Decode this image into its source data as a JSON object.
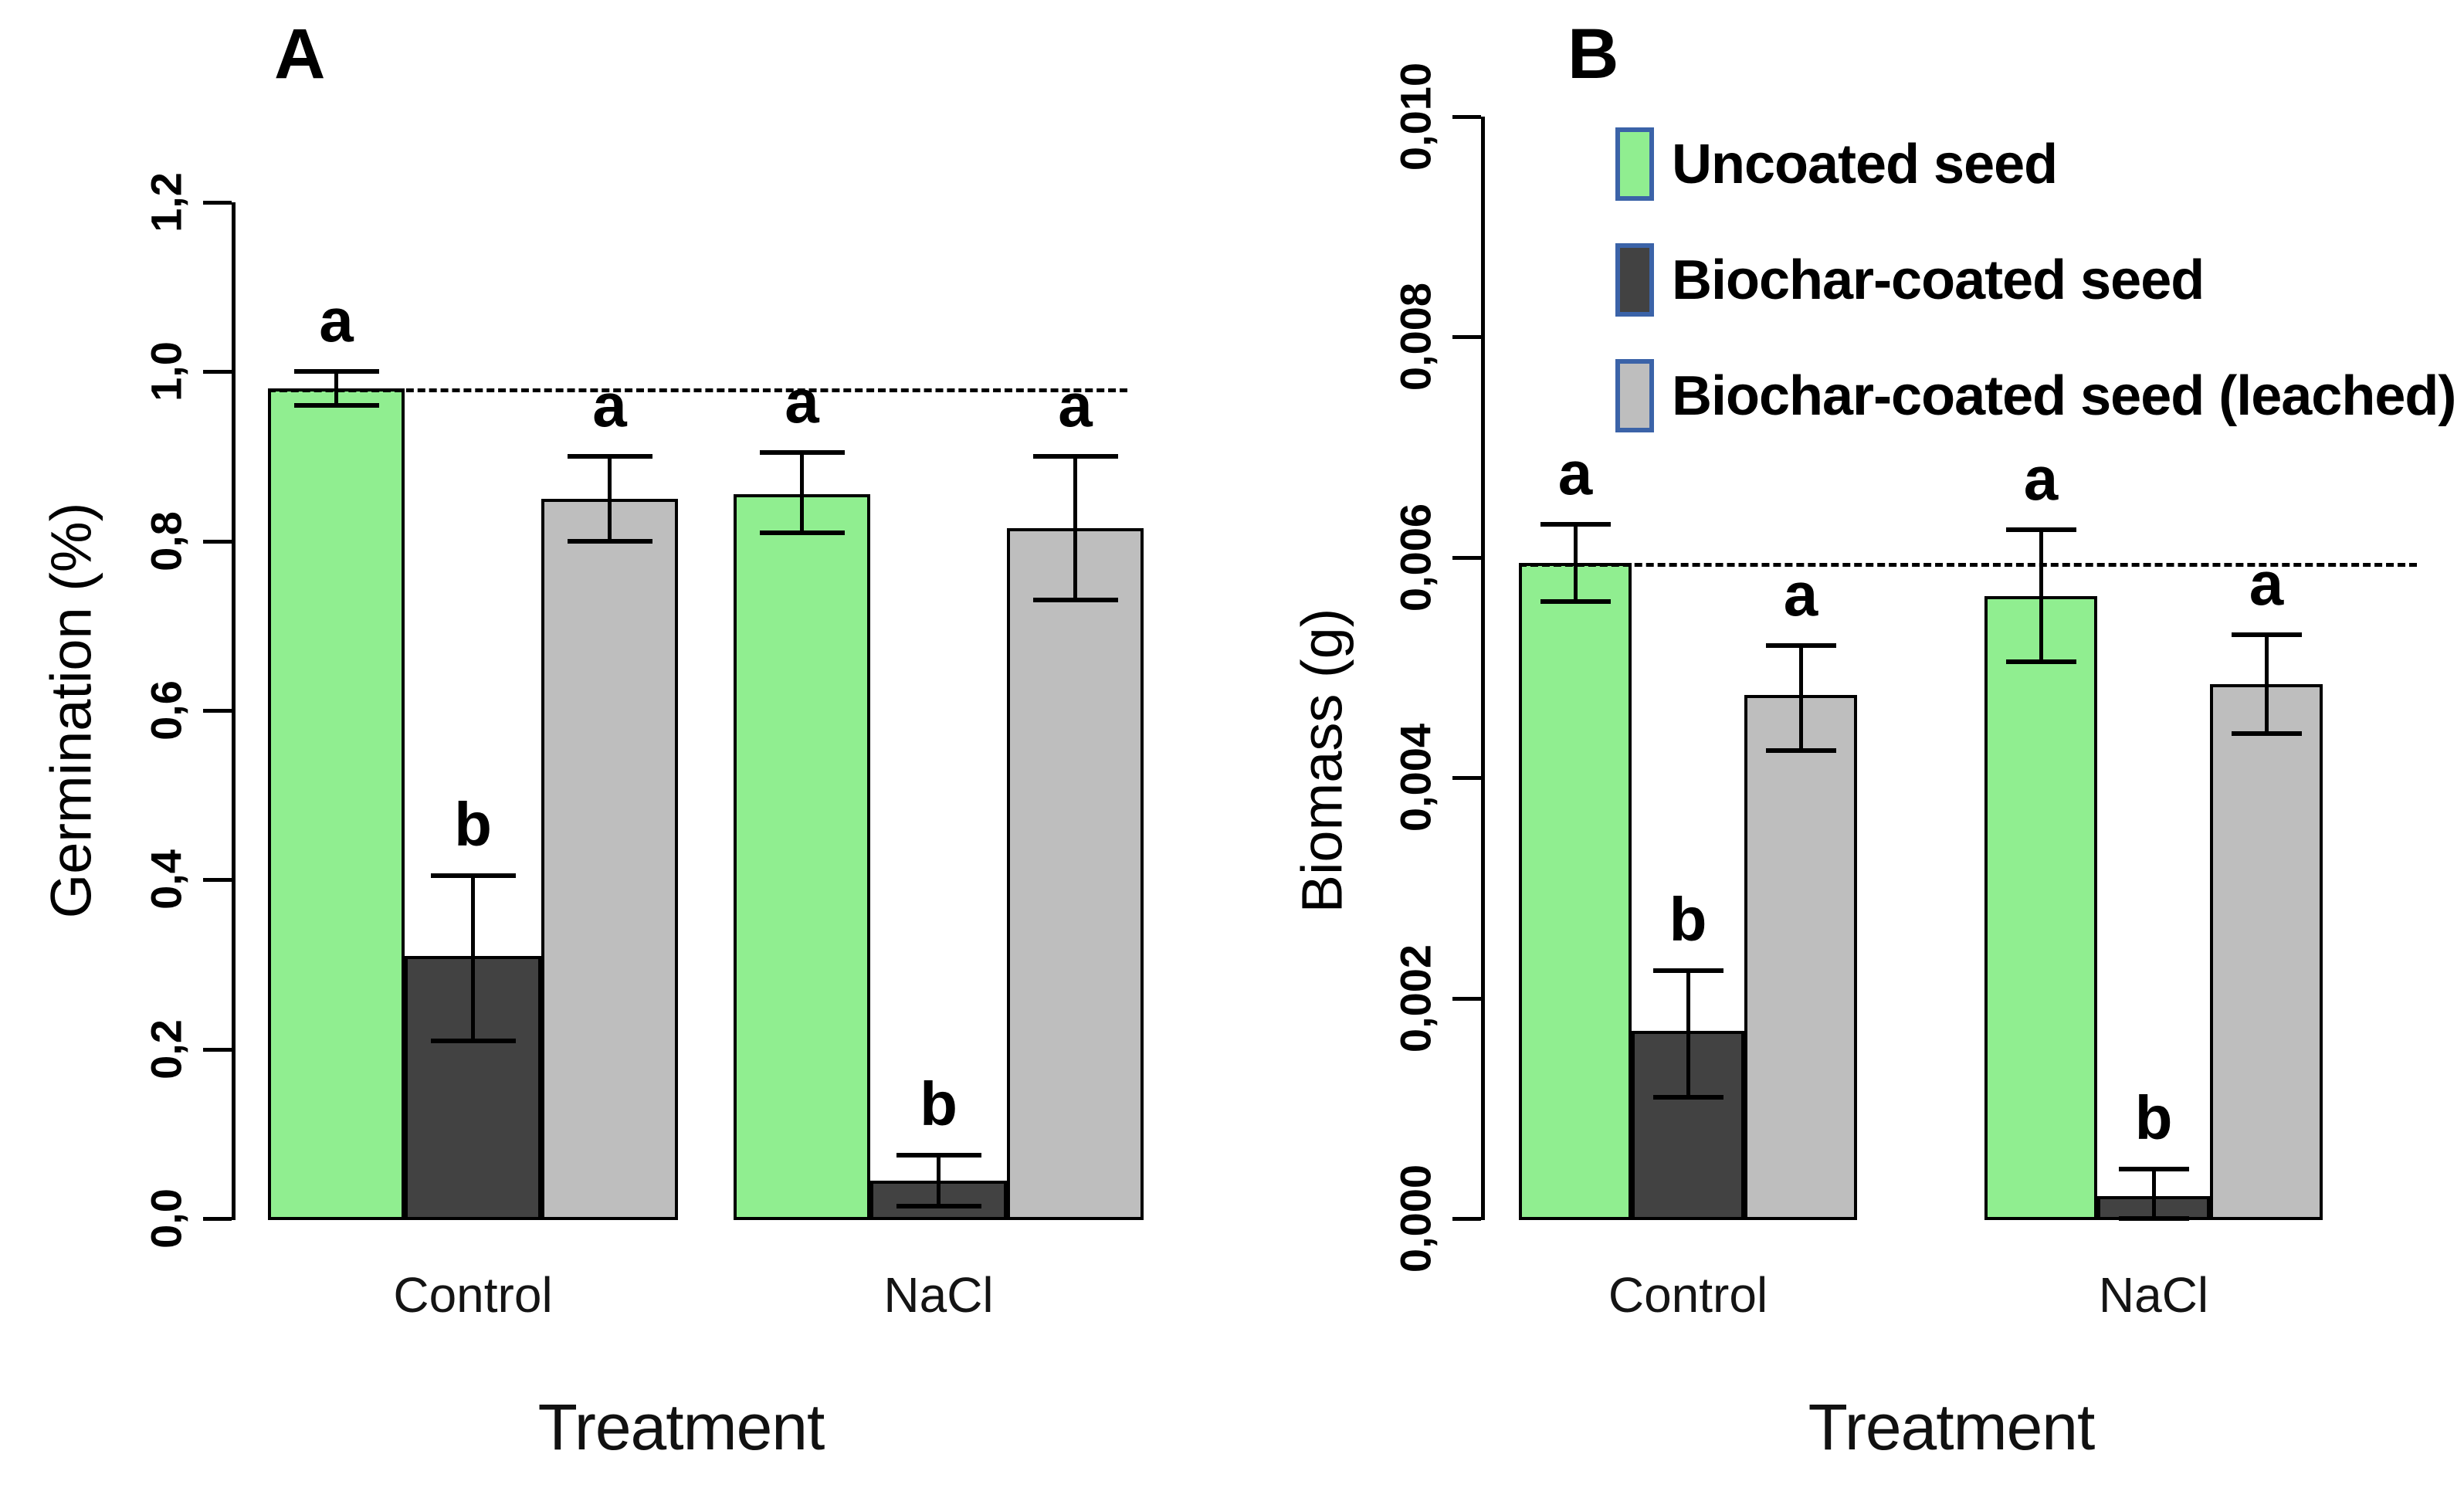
{
  "figure": {
    "panels": [
      {
        "letter": "A",
        "y_title": "Germination (%)",
        "x_title": "Treatment"
      },
      {
        "letter": "B",
        "y_title": "Biomass (g)",
        "x_title": "Treatment"
      }
    ]
  },
  "colors": {
    "uncoated": "#90EE90",
    "biochar": "#424242",
    "leached": "#BEBEBE",
    "bar_border": "#000000",
    "legend_border": "#3B63A8",
    "axis": "#000000"
  },
  "legend": {
    "entries": [
      {
        "label": "Uncoated seed",
        "color_key": "uncoated"
      },
      {
        "label": "Biochar-coated seed",
        "color_key": "biochar"
      },
      {
        "label": "Biochar-coated seed (leached)",
        "color_key": "leached"
      }
    ]
  },
  "chart_data": [
    {
      "type": "bar",
      "panel": "A",
      "title": "",
      "xlabel": "Treatment",
      "ylabel": "Germination (%)",
      "categories": [
        "Control",
        "NaCl"
      ],
      "ylim": [
        0,
        1.2
      ],
      "yticks": [
        0,
        0.2,
        0.4,
        0.6,
        0.8,
        1.0,
        1.2
      ],
      "ytick_labels": [
        "0,0",
        "0,2",
        "0,4",
        "0,6",
        "0,8",
        "1,0",
        "1,2"
      ],
      "grid": false,
      "dashed_line_y": 0.98,
      "series": [
        {
          "name": "Uncoated seed",
          "color_key": "uncoated",
          "values": [
            0.98,
            0.855
          ],
          "err_low": [
            0.96,
            0.81
          ],
          "err_high": [
            1.0,
            0.905
          ],
          "sig_letters": [
            "a",
            "a"
          ]
        },
        {
          "name": "Biochar-coated seed",
          "color_key": "biochar",
          "values": [
            0.31,
            0.045
          ],
          "err_low": [
            0.21,
            0.015
          ],
          "err_high": [
            0.405,
            0.075
          ],
          "sig_letters": [
            "b",
            "b"
          ]
        },
        {
          "name": "Biochar-coated seed (leached)",
          "color_key": "leached",
          "values": [
            0.85,
            0.815
          ],
          "err_low": [
            0.8,
            0.73
          ],
          "err_high": [
            0.9,
            0.9
          ],
          "sig_letters": [
            "a",
            "a"
          ]
        }
      ]
    },
    {
      "type": "bar",
      "panel": "B",
      "title": "",
      "xlabel": "Treatment",
      "ylabel": "Biomass (g)",
      "categories": [
        "Control",
        "NaCl"
      ],
      "ylim": [
        0,
        0.01
      ],
      "yticks": [
        0,
        0.002,
        0.004,
        0.006,
        0.008,
        0.01
      ],
      "ytick_labels": [
        "0,000",
        "0,002",
        "0,004",
        "0,006",
        "0,008",
        "0,010"
      ],
      "grid": false,
      "dashed_line_y": 0.00595,
      "series": [
        {
          "name": "Uncoated seed",
          "color_key": "uncoated",
          "values": [
            0.00595,
            0.00565
          ],
          "err_low": [
            0.0056,
            0.00505
          ],
          "err_high": [
            0.0063,
            0.00625
          ],
          "sig_letters": [
            "a",
            "a"
          ]
        },
        {
          "name": "Biochar-coated seed",
          "color_key": "biochar",
          "values": [
            0.0017,
            0.0002
          ],
          "err_low": [
            0.0011,
            0.0
          ],
          "err_high": [
            0.00225,
            0.00045
          ],
          "sig_letters": [
            "b",
            "b"
          ]
        },
        {
          "name": "Biochar-coated seed (leached)",
          "color_key": "leached",
          "values": [
            0.00475,
            0.00485
          ],
          "err_low": [
            0.00425,
            0.0044
          ],
          "err_high": [
            0.0052,
            0.0053
          ],
          "sig_letters": [
            "a",
            "a"
          ]
        }
      ]
    }
  ]
}
